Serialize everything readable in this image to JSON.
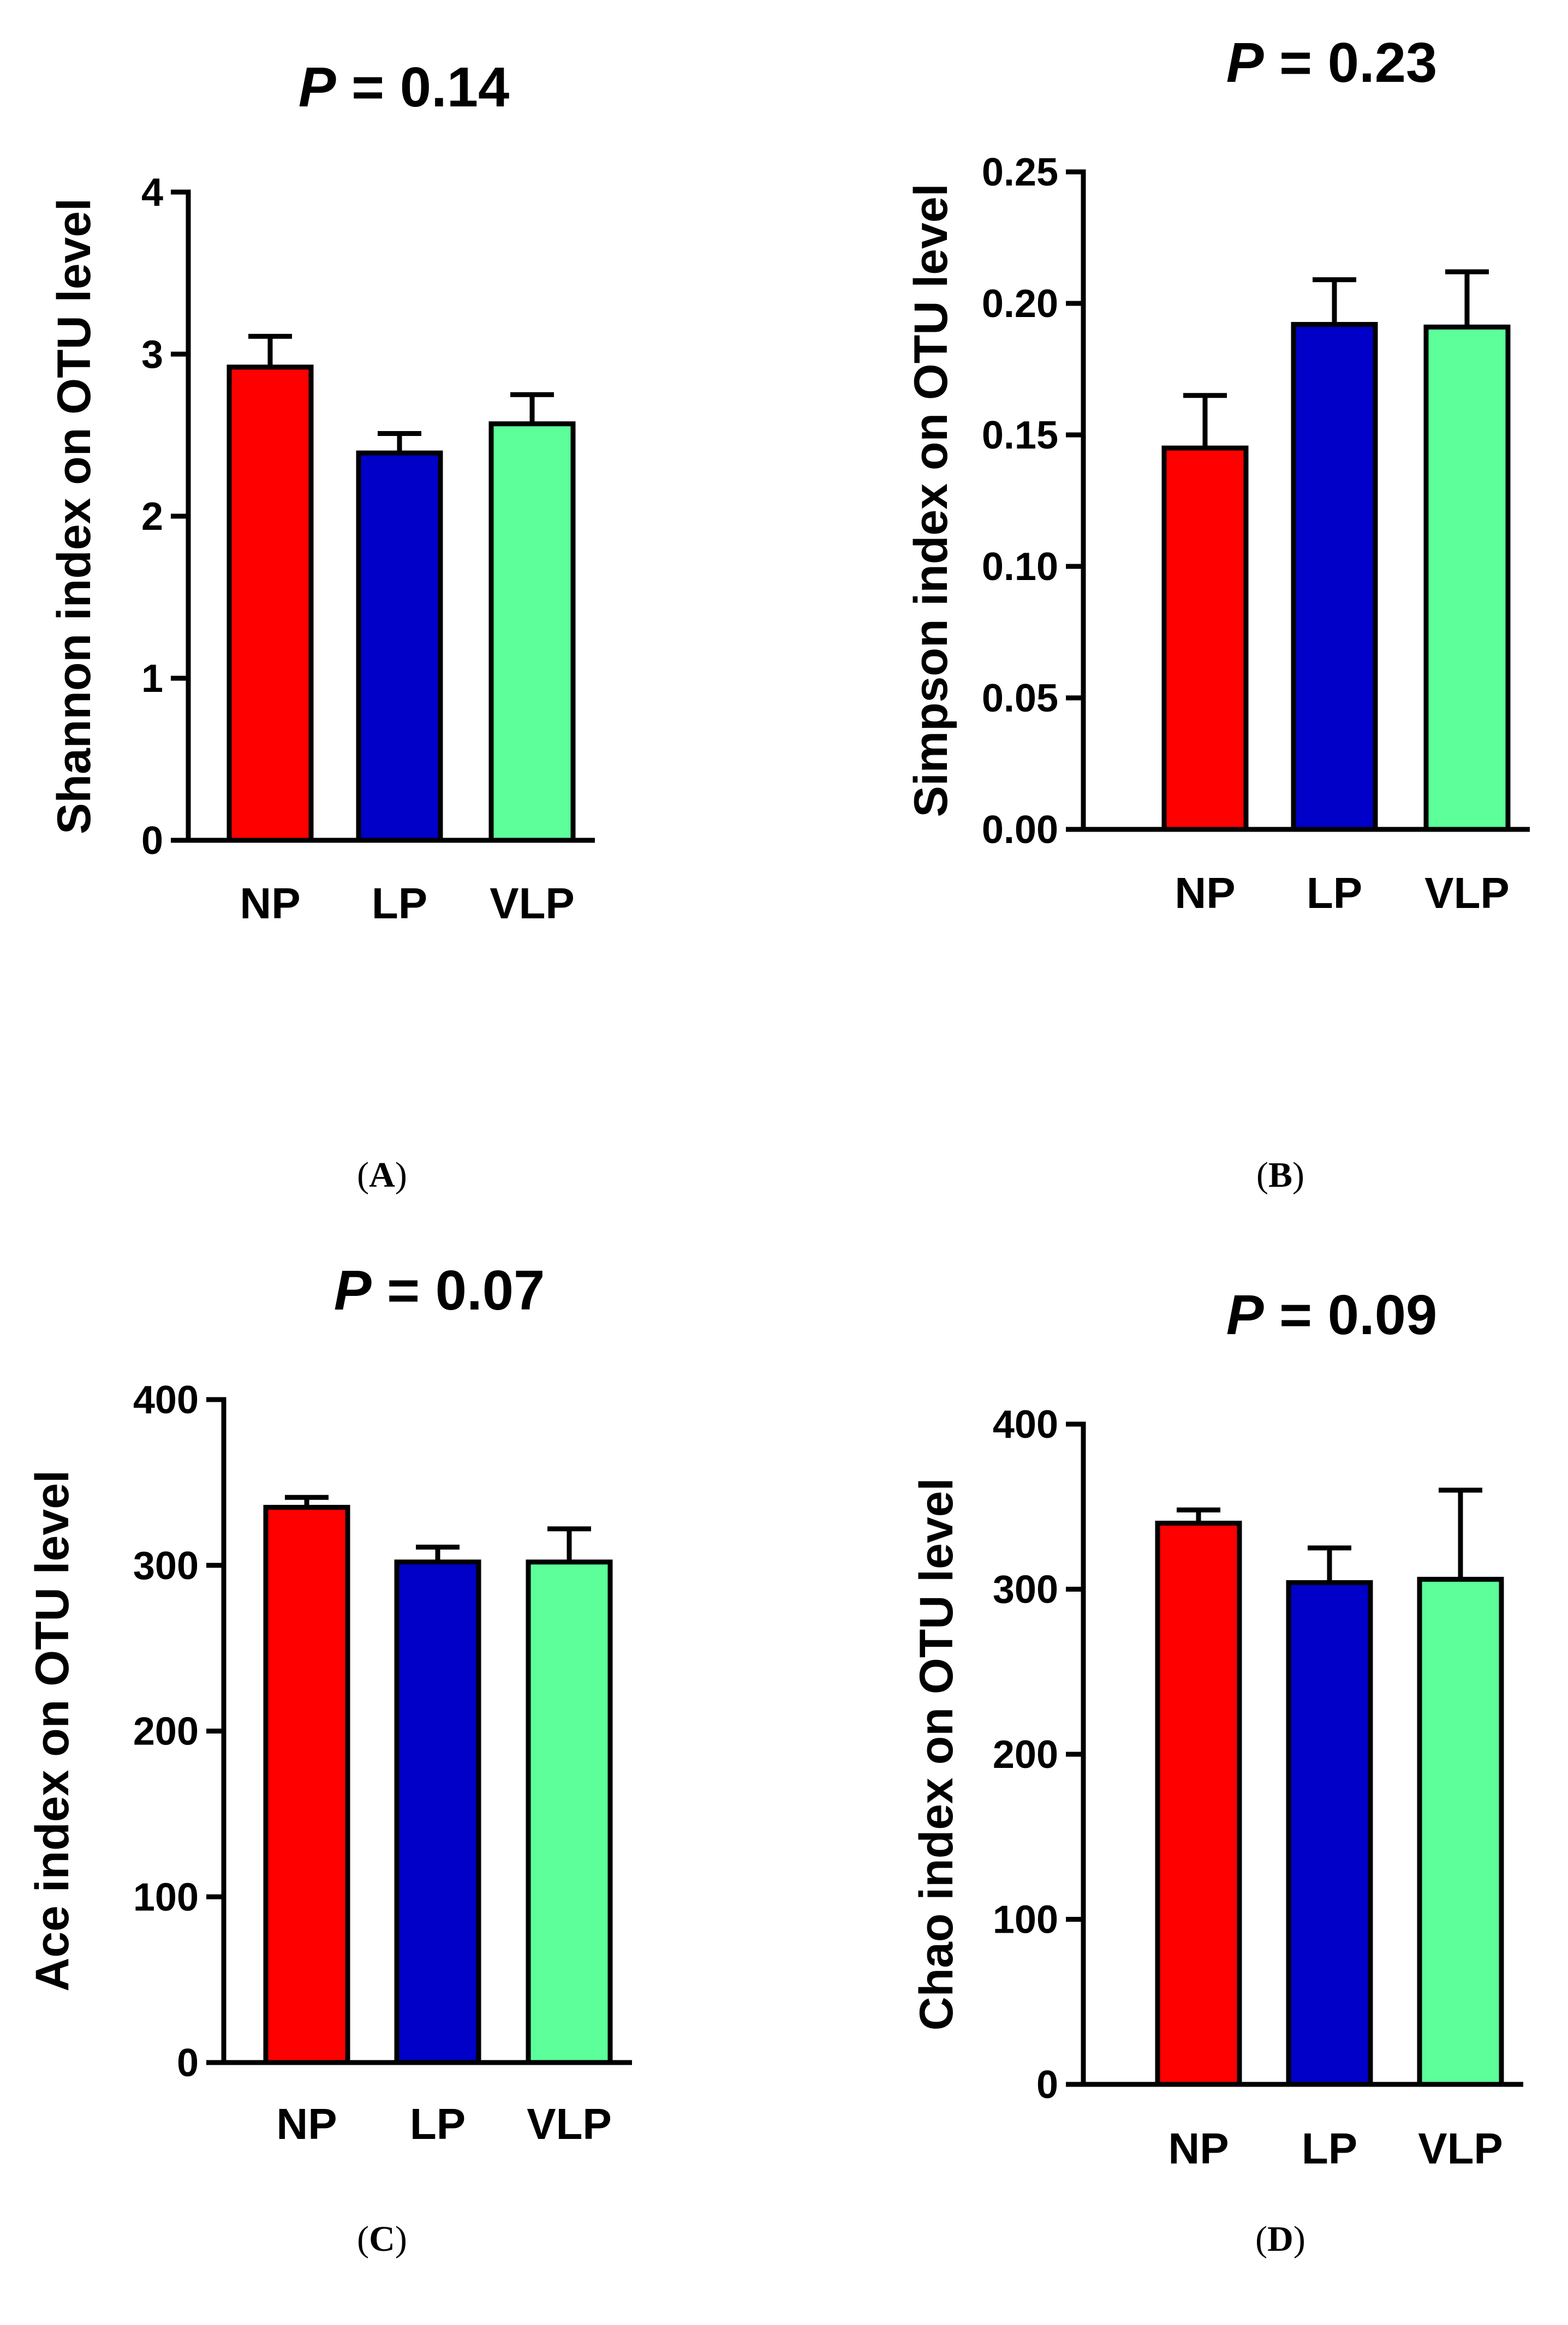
{
  "chart_data": [
    {
      "type": "bar",
      "panel": "A",
      "title_prefix": "P",
      "title_value": "= 0.14",
      "ylabel": "Shannon index on OTU level",
      "xlabel": "",
      "categories": [
        "NP",
        "LP",
        "VLP"
      ],
      "values": [
        2.92,
        2.39,
        2.57
      ],
      "errors": [
        0.19,
        0.12,
        0.18
      ],
      "colors": [
        "#ff0000",
        "#0000c8",
        "#5cff9a"
      ],
      "ylim": [
        0,
        4
      ],
      "yticks": [
        0,
        1,
        2,
        3,
        4
      ],
      "ytick_labels": [
        "0",
        "1",
        "2",
        "3",
        "4"
      ],
      "grid": false
    },
    {
      "type": "bar",
      "panel": "B",
      "title_prefix": "P",
      "title_value": "= 0.23",
      "ylabel": "Simpson index on OTU level",
      "xlabel": "",
      "categories": [
        "NP",
        "LP",
        "VLP"
      ],
      "values": [
        0.145,
        0.192,
        0.191
      ],
      "errors": [
        0.02,
        0.017,
        0.021
      ],
      "colors": [
        "#ff0000",
        "#0000c8",
        "#5cff9a"
      ],
      "ylim": [
        0,
        0.25
      ],
      "yticks": [
        0,
        0.05,
        0.1,
        0.15,
        0.2,
        0.25
      ],
      "ytick_labels": [
        "0.00",
        "0.05",
        "0.10",
        "0.15",
        "0.20",
        "0.25"
      ],
      "grid": false
    },
    {
      "type": "bar",
      "panel": "C",
      "title_prefix": "P",
      "title_value": "= 0.07",
      "ylabel": "Ace index on OTU level",
      "xlabel": "",
      "categories": [
        "NP",
        "LP",
        "VLP"
      ],
      "values": [
        335,
        302,
        302
      ],
      "errors": [
        6,
        9,
        20
      ],
      "colors": [
        "#ff0000",
        "#0000c8",
        "#5cff9a"
      ],
      "ylim": [
        0,
        400
      ],
      "yticks": [
        0,
        100,
        200,
        300,
        400
      ],
      "ytick_labels": [
        "0",
        "100",
        "200",
        "300",
        "400"
      ],
      "grid": false
    },
    {
      "type": "bar",
      "panel": "D",
      "title_prefix": "P",
      "title_value": "= 0.09",
      "ylabel": "Chao index on OTU level",
      "xlabel": "",
      "categories": [
        "NP",
        "LP",
        "VLP"
      ],
      "values": [
        340,
        304,
        306
      ],
      "errors": [
        8,
        21,
        54
      ],
      "colors": [
        "#ff0000",
        "#0000c8",
        "#5cff9a"
      ],
      "ylim": [
        0,
        400
      ],
      "yticks": [
        0,
        100,
        200,
        300,
        400
      ],
      "ytick_labels": [
        "0",
        "100",
        "200",
        "300",
        "400"
      ],
      "grid": false
    }
  ],
  "panel_labels": [
    {
      "open": "(",
      "letter": "A",
      "close": ")"
    },
    {
      "open": "(",
      "letter": "B",
      "close": ")"
    },
    {
      "open": "(",
      "letter": "C",
      "close": ")"
    },
    {
      "open": "(",
      "letter": "D",
      "close": ")"
    }
  ]
}
